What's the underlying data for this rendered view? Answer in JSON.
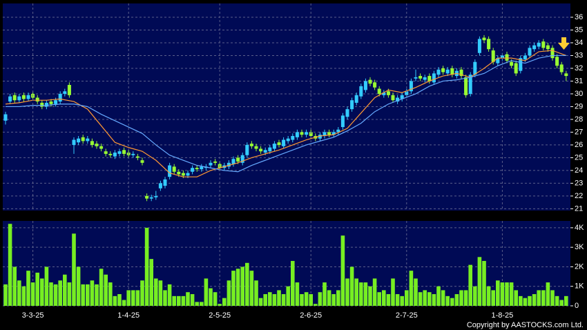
{
  "chart_data": [
    {
      "type": "candlestick",
      "up_color": "#33ccff",
      "down_color": "#99ff33",
      "open": [
        27.9,
        29.4,
        29.9,
        29.5,
        29.9,
        29.6,
        30.0,
        29.7,
        29.3,
        29.0,
        29.4,
        29.2,
        29.4,
        30.0,
        30.7,
        26.0,
        26.2,
        26.6,
        26.3,
        26.3,
        26.1,
        25.9,
        25.5,
        25.3,
        25.1,
        25.3,
        25.6,
        25.4,
        25.2,
        25.1,
        24.8,
        22.0,
        21.8,
        21.9,
        22.6,
        22.8,
        23.5,
        24.3,
        23.9,
        23.8,
        23.6,
        23.9,
        24.2,
        24.1,
        24.2,
        24.4,
        24.7,
        24.5,
        24.2,
        24.3,
        24.5,
        25.0,
        24.6,
        25.2,
        26.1,
        25.9,
        25.7,
        25.4,
        25.5,
        25.7,
        26.2,
        25.9,
        26.3,
        26.4,
        26.6,
        27.0,
        26.8,
        27.0,
        26.7,
        26.5,
        26.7,
        27.0,
        26.8,
        27.0,
        27.4,
        28.2,
        28.8,
        29.3,
        29.8,
        30.3,
        31.1,
        30.9,
        30.4,
        29.9,
        30.2,
        29.9,
        29.4,
        29.6,
        29.9,
        30.2,
        31.2,
        31.4,
        31.1,
        31.4,
        30.9,
        31.5,
        32.0,
        31.6,
        32.0,
        31.4,
        31.9,
        31.3,
        30.0,
        31.5,
        33.2,
        34.4,
        34.3,
        33.4,
        32.4,
        32.8,
        33.1,
        32.5,
        32.4,
        31.8,
        32.7,
        33.0,
        33.5,
        33.7,
        34.1,
        33.8,
        33.6,
        32.9,
        32.3,
        31.6
      ],
      "high": [
        28.6,
        30.0,
        30.1,
        30.0,
        30.1,
        30.1,
        30.2,
        29.9,
        29.5,
        29.5,
        29.6,
        29.7,
        30.2,
        30.4,
        30.9,
        26.6,
        26.7,
        26.8,
        26.7,
        26.5,
        26.3,
        26.1,
        25.7,
        25.5,
        25.6,
        25.7,
        25.8,
        25.6,
        25.5,
        25.3,
        25.0,
        22.2,
        22.1,
        22.4,
        23.2,
        23.5,
        24.6,
        24.5,
        24.1,
        24.0,
        24.0,
        24.4,
        24.4,
        24.5,
        24.5,
        24.8,
        24.9,
        24.7,
        24.6,
        24.8,
        25.1,
        25.2,
        25.4,
        26.2,
        26.3,
        26.1,
        25.9,
        25.8,
        26.0,
        26.3,
        26.4,
        26.6,
        26.7,
        26.9,
        27.2,
        27.2,
        27.2,
        27.2,
        26.9,
        27.0,
        27.2,
        27.2,
        27.2,
        27.4,
        28.5,
        29.0,
        29.7,
        30.1,
        30.8,
        31.2,
        31.3,
        31.1,
        30.6,
        30.3,
        30.4,
        30.1,
        29.9,
        30.1,
        30.4,
        31.2,
        31.9,
        31.6,
        31.5,
        31.6,
        31.8,
        32.1,
        32.2,
        32.1,
        32.2,
        32.0,
        32.1,
        31.5,
        31.7,
        32.7,
        34.5,
        34.6,
        34.5,
        33.6,
        33.0,
        33.2,
        33.3,
        32.7,
        32.6,
        33.0,
        33.2,
        33.8,
        34.0,
        34.2,
        34.3,
        34.0,
        33.8,
        33.1,
        32.5,
        31.8
      ],
      "low": [
        27.6,
        29.2,
        29.3,
        29.3,
        29.4,
        29.4,
        29.5,
        29.2,
        28.8,
        28.8,
        29.0,
        29.0,
        29.2,
        29.8,
        29.7,
        25.3,
        26.0,
        26.1,
        26.1,
        25.8,
        25.7,
        25.5,
        25.1,
        25.0,
        24.9,
        25.1,
        25.1,
        25.0,
        25.0,
        24.8,
        24.4,
        21.6,
        21.6,
        21.7,
        22.4,
        22.6,
        23.3,
        23.7,
        23.5,
        23.4,
        23.4,
        23.7,
        23.9,
        23.9,
        24.0,
        24.2,
        24.4,
        24.0,
        24.0,
        24.1,
        24.3,
        24.5,
        24.4,
        25.0,
        25.7,
        25.5,
        25.3,
        25.2,
        25.3,
        25.5,
        25.8,
        25.7,
        26.1,
        26.2,
        26.4,
        26.6,
        26.6,
        26.5,
        26.3,
        26.3,
        26.5,
        26.6,
        26.6,
        26.8,
        27.2,
        28.0,
        28.6,
        29.1,
        29.6,
        30.1,
        30.6,
        30.3,
        29.8,
        29.7,
        29.7,
        29.3,
        29.2,
        29.4,
        29.7,
        30.0,
        31.0,
        31.0,
        30.9,
        30.8,
        30.7,
        31.3,
        31.5,
        31.4,
        31.3,
        31.2,
        31.2,
        29.7,
        29.8,
        31.3,
        33.0,
        34.0,
        33.3,
        32.3,
        32.2,
        32.6,
        32.4,
        32.0,
        31.4,
        31.6,
        32.5,
        32.8,
        33.3,
        33.5,
        33.4,
        33.3,
        32.6,
        32.0,
        31.5,
        31.0
      ],
      "close": [
        28.4,
        29.8,
        29.5,
        29.8,
        29.6,
        29.9,
        29.7,
        29.4,
        29.0,
        29.3,
        29.2,
        29.5,
        30.0,
        30.2,
        29.9,
        26.4,
        26.5,
        26.3,
        26.5,
        26.0,
        25.9,
        25.7,
        25.3,
        25.2,
        25.4,
        25.5,
        25.3,
        25.2,
        25.3,
        25.0,
        24.6,
        21.8,
        21.9,
        22.0,
        23.0,
        23.3,
        24.4,
        23.9,
        23.7,
        23.6,
        23.8,
        24.2,
        24.1,
        24.3,
        24.3,
        24.6,
        24.6,
        24.2,
        24.4,
        24.6,
        24.9,
        24.7,
        25.2,
        26.0,
        25.9,
        25.7,
        25.5,
        25.6,
        25.8,
        26.1,
        26.0,
        26.4,
        26.5,
        26.7,
        27.0,
        26.8,
        27.0,
        26.7,
        26.5,
        26.8,
        27.0,
        26.8,
        27.0,
        27.2,
        28.3,
        28.8,
        29.5,
        29.9,
        30.6,
        31.0,
        30.8,
        30.5,
        30.0,
        30.1,
        29.9,
        29.5,
        29.7,
        29.9,
        30.2,
        31.0,
        31.3,
        31.2,
        31.3,
        31.0,
        31.6,
        31.9,
        31.7,
        31.9,
        31.5,
        31.8,
        31.4,
        29.9,
        31.5,
        32.5,
        34.3,
        34.2,
        33.5,
        32.5,
        32.8,
        33.0,
        32.6,
        32.2,
        31.6,
        32.8,
        33.0,
        33.6,
        33.8,
        34.0,
        33.6,
        33.5,
        32.8,
        32.2,
        31.7,
        31.4
      ],
      "series": [
        {
          "color": "#ff9933",
          "x": [
            0,
            3,
            6,
            9,
            12,
            15,
            18,
            21,
            24,
            27,
            30,
            33,
            36,
            39,
            42,
            45,
            48,
            51,
            54,
            57,
            60,
            63,
            66,
            69,
            72,
            75,
            78,
            81,
            84,
            87,
            90,
            93,
            96,
            99,
            102,
            105,
            108,
            111,
            114,
            117,
            120,
            123
          ],
          "values": [
            29.2,
            29.3,
            29.5,
            29.5,
            29.6,
            29.4,
            28.8,
            27.5,
            26.2,
            25.8,
            25.5,
            24.8,
            23.8,
            23.5,
            23.5,
            24.0,
            24.3,
            24.6,
            25.0,
            25.3,
            25.6,
            26.0,
            26.4,
            26.7,
            26.8,
            27.3,
            28.5,
            29.7,
            30.3,
            30.1,
            30.5,
            31.0,
            31.4,
            31.6,
            31.3,
            32.0,
            32.8,
            32.8,
            32.6,
            33.3,
            33.4,
            33.0
          ]
        },
        {
          "color": "#66aaff",
          "x": [
            0,
            3,
            6,
            9,
            12,
            15,
            18,
            21,
            24,
            27,
            30,
            33,
            36,
            39,
            42,
            45,
            48,
            51,
            54,
            57,
            60,
            63,
            66,
            69,
            72,
            75,
            78,
            81,
            84,
            87,
            90,
            93,
            96,
            99,
            102,
            105,
            108,
            111,
            114,
            117,
            120,
            123
          ],
          "values": [
            29.0,
            29.0,
            29.1,
            29.1,
            29.2,
            29.2,
            29.0,
            28.4,
            27.9,
            27.4,
            26.9,
            26.0,
            25.2,
            24.8,
            24.4,
            24.2,
            24.0,
            23.9,
            24.4,
            24.8,
            25.2,
            25.6,
            26.0,
            26.3,
            26.6,
            27.1,
            27.7,
            28.6,
            29.2,
            29.6,
            30.0,
            30.6,
            31.0,
            31.1,
            31.3,
            31.6,
            32.2,
            32.6,
            32.4,
            32.8,
            33.0,
            33.0
          ]
        }
      ],
      "ylim": [
        20.86,
        37.08
      ],
      "yticks": [
        21,
        22,
        23,
        24,
        25,
        26,
        27,
        28,
        29,
        30,
        31,
        32,
        33,
        34,
        35,
        36
      ],
      "grid": true
    },
    {
      "type": "bar",
      "color": "#77ee22",
      "categories": [
        null,
        null,
        null,
        null,
        null,
        null,
        "3-3-25",
        null,
        null,
        null,
        null,
        null,
        null,
        null,
        null,
        null,
        null,
        null,
        null,
        null,
        null,
        null,
        null,
        null,
        null,
        null,
        null,
        "1-4-25",
        null,
        null,
        null,
        null,
        null,
        null,
        null,
        null,
        null,
        null,
        null,
        null,
        null,
        null,
        null,
        null,
        null,
        null,
        null,
        "2-5-25",
        null,
        null,
        null,
        null,
        null,
        null,
        null,
        null,
        null,
        null,
        null,
        null,
        null,
        null,
        null,
        null,
        null,
        null,
        null,
        "2-6-25",
        null,
        null,
        null,
        null,
        null,
        null,
        null,
        null,
        null,
        null,
        null,
        null,
        null,
        null,
        null,
        null,
        null,
        null,
        null,
        null,
        "2-7-25",
        null,
        null,
        null,
        null,
        null,
        null,
        null,
        null,
        null,
        null,
        null,
        null,
        null,
        null,
        null,
        null,
        null,
        null,
        null,
        null,
        "1-8-25",
        null,
        null,
        null,
        null,
        null,
        null,
        null,
        null,
        null,
        null,
        null,
        null,
        null,
        null
      ],
      "values": [
        1100,
        4200,
        2000,
        1300,
        1000,
        1800,
        1200,
        1700,
        1400,
        2000,
        1200,
        1100,
        1300,
        1600,
        1200,
        3700,
        2000,
        1100,
        1100,
        1300,
        1100,
        1900,
        1600,
        1200,
        500,
        600,
        300,
        800,
        800,
        800,
        1300,
        4000,
        2400,
        1400,
        1300,
        800,
        1100,
        500,
        500,
        500,
        700,
        600,
        200,
        200,
        1400,
        900,
        700,
        100,
        400,
        1300,
        1800,
        1900,
        2000,
        2200,
        1800,
        1300,
        400,
        600,
        700,
        600,
        800,
        600,
        1000,
        2300,
        1200,
        600,
        700,
        600,
        100,
        700,
        1200,
        800,
        600,
        800,
        3600,
        1400,
        2000,
        1400,
        1200,
        1200,
        1000,
        1400,
        700,
        800,
        600,
        1400,
        600,
        500,
        800,
        1800,
        1400,
        700,
        800,
        700,
        600,
        1000,
        800,
        500,
        400,
        600,
        800,
        800,
        2100,
        1000,
        2500,
        2300,
        1000,
        800,
        1300,
        1200,
        1200,
        1200,
        800,
        500,
        400,
        500,
        600,
        800,
        800,
        1200,
        800,
        500,
        300,
        500
      ],
      "ylim": [
        0,
        4350
      ],
      "yticks": [
        0,
        {
          "value": 1000,
          "label": "1K"
        },
        {
          "value": 2000,
          "label": "2K"
        },
        {
          "value": 3000,
          "label": "3K"
        },
        {
          "value": 4000,
          "label": "4K"
        }
      ],
      "grid": true
    }
  ],
  "footer": "Copyright by AASTOCKS.com Ltd."
}
